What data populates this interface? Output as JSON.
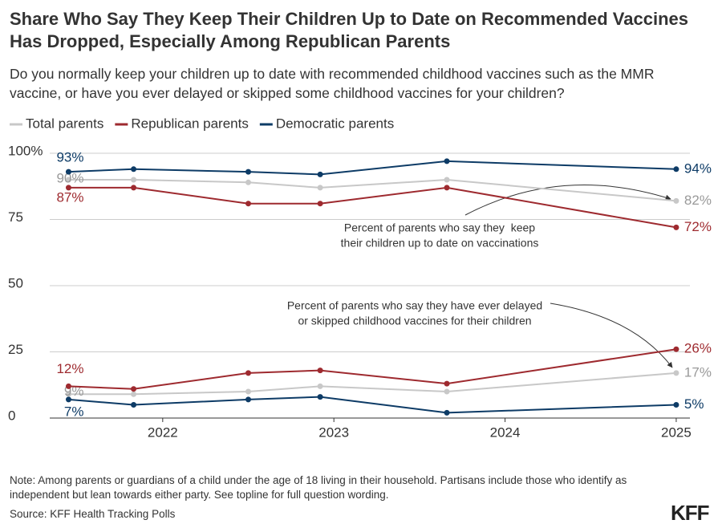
{
  "chart_data": {
    "type": "line",
    "title": "Share Who Say They Keep Their Children Up to Date on Recommended Vaccines Has Dropped, Especially Among Republican Parents",
    "subtitle": "Do you normally keep your children up to date with recommended childhood vaccines such as the MMR vaccine, or have you ever delayed or skipped some childhood vaccines for your children?",
    "x": [
      2021.45,
      2021.83,
      2022.5,
      2022.92,
      2023.66,
      2025.0
    ],
    "xlim": [
      2021.34,
      2025.08
    ],
    "xticks": [
      2022,
      2023,
      2024,
      2025
    ],
    "ylim": [
      0,
      100
    ],
    "yticks": [
      {
        "value": 100,
        "label": "100%"
      },
      75,
      50,
      25,
      0
    ],
    "grid": true,
    "series": [
      {
        "name": "Total parents",
        "color": "#c8c8c8",
        "label_color": "#999999",
        "values": [
          90,
          90,
          89,
          87,
          90,
          82
        ],
        "value_labels": [
          "90%",
          null,
          null,
          null,
          null,
          "82%"
        ],
        "delayed_values": [
          9,
          9,
          10,
          12,
          10,
          17
        ],
        "delayed_value_labels": [
          "9%",
          null,
          null,
          null,
          null,
          "17%"
        ]
      },
      {
        "name": "Republican parents",
        "color": "#9e2a2f",
        "label_color": "#9e2a2f",
        "values": [
          87,
          87,
          81,
          81,
          87,
          72
        ],
        "value_labels": [
          "87%",
          null,
          null,
          null,
          null,
          "72%"
        ],
        "delayed_values": [
          12,
          11,
          17,
          18,
          13,
          26
        ],
        "delayed_value_labels": [
          "12%",
          null,
          null,
          null,
          null,
          "26%"
        ]
      },
      {
        "name": "Democratic parents",
        "color": "#0d3b66",
        "label_color": "#0d3b66",
        "values": [
          93,
          94,
          93,
          92,
          97,
          94
        ],
        "value_labels": [
          "93%",
          null,
          null,
          null,
          null,
          "94%"
        ],
        "delayed_values": [
          7,
          5,
          7,
          8,
          2,
          5
        ],
        "delayed_value_labels": [
          "7%",
          null,
          null,
          null,
          null,
          "5%"
        ]
      }
    ],
    "annotations": [
      [
        "Percent of parents who say they  keep",
        "their children up to date on vaccinations"
      ],
      [
        "Percent of parents who say they have ever delayed",
        "or skipped childhood vaccines for their children"
      ]
    ],
    "note": "Note: Among parents or guardians of a child under the age of 18 living in their household. Partisans include those who identify as independent but lean towards either party. See topline for full question wording.",
    "source": "Source: KFF Health Tracking Polls",
    "logo": "KFF"
  }
}
